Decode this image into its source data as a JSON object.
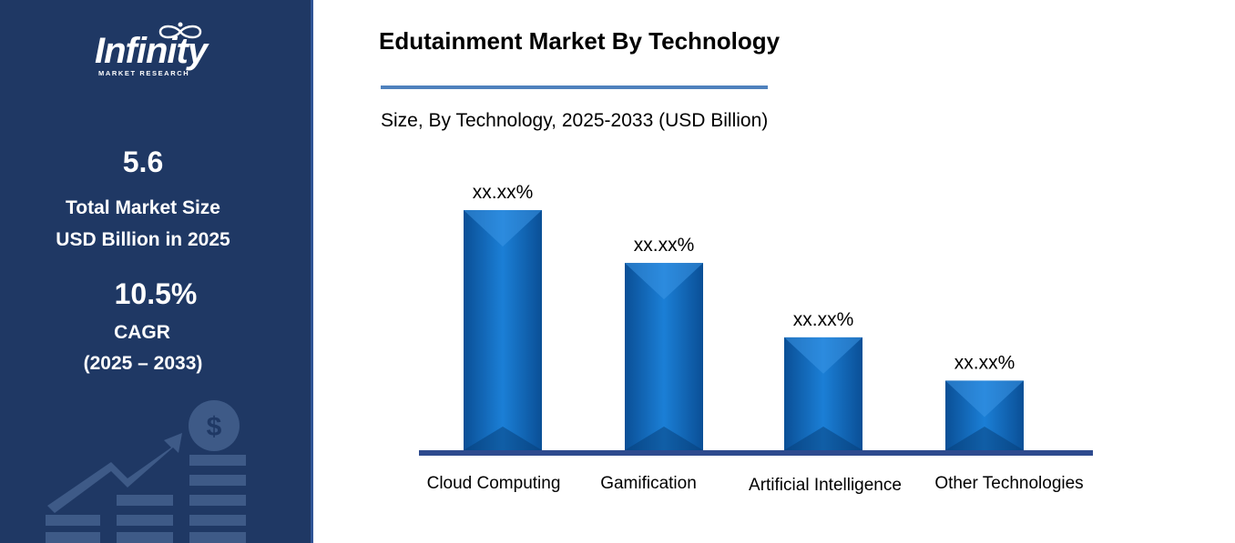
{
  "brand": {
    "name": "Infinity",
    "tagline": "MARKET RESEARCH"
  },
  "stats": {
    "market_size_value": "5.6",
    "market_size_label_line1": "Total Market Size",
    "market_size_label_line2": "USD Billion in 2025",
    "cagr_value": "10.5%",
    "cagr_label": "CAGR",
    "cagr_period": "(2025 – 2033)"
  },
  "colors": {
    "sidebar_bg": "#1f3864",
    "bar_fill": "#0b63b6",
    "axis": "#2e4b8e",
    "accent_rule": "#4f81bd"
  },
  "chart_data": {
    "type": "bar",
    "title": "Edutainment Market By Technology",
    "subtitle": "Size, By Technology, 2025-2033 (USD Billion)",
    "categories": [
      "Cloud Computing",
      "Gamification",
      "Artificial Intelligence",
      "Other Technologies"
    ],
    "values": [
      100,
      78,
      47,
      29
    ],
    "data_labels": [
      "xx.xx%",
      "xx.xx%",
      "xx.xx%",
      "xx.xx%"
    ],
    "xlabel": "",
    "ylabel": "",
    "ylim": [
      0,
      100
    ],
    "grid": false,
    "legend": "none"
  }
}
